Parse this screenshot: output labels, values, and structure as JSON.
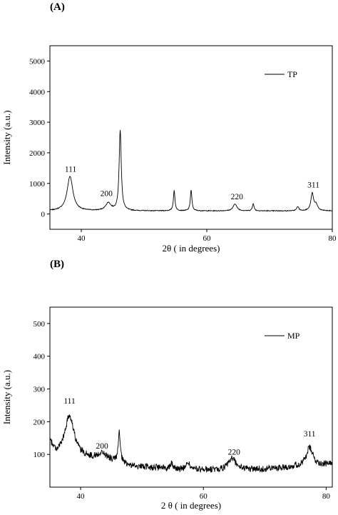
{
  "chart_data": [
    {
      "type": "line",
      "panel_label": "(A)",
      "xlabel": "2θ ( in degrees)",
      "ylabel": "Intensity (a.u.)",
      "xlim": [
        35,
        80
      ],
      "ylim": [
        -500,
        5500
      ],
      "xticks": [
        40,
        60,
        80
      ],
      "yticks": [
        0,
        1000,
        2000,
        3000,
        4000,
        5000
      ],
      "grid": false,
      "legend": {
        "position": "top-right",
        "entries": [
          "TP"
        ]
      },
      "series": [
        {
          "name": "TP",
          "baseline": 100,
          "peaks": [
            {
              "x": 38.2,
              "h": 1130,
              "w": 0.55
            },
            {
              "x": 44.3,
              "h": 250,
              "w": 0.5
            },
            {
              "x": 46.2,
              "h": 2630,
              "w": 0.2
            },
            {
              "x": 54.8,
              "h": 660,
              "w": 0.15
            },
            {
              "x": 57.5,
              "h": 680,
              "w": 0.15
            },
            {
              "x": 64.5,
              "h": 230,
              "w": 0.35
            },
            {
              "x": 67.4,
              "h": 240,
              "w": 0.15
            },
            {
              "x": 74.5,
              "h": 140,
              "w": 0.2
            },
            {
              "x": 76.8,
              "h": 560,
              "w": 0.25
            },
            {
              "x": 77.4,
              "h": 200,
              "w": 0.3
            }
          ],
          "noise": 12
        }
      ],
      "annotations": [
        {
          "text": "111",
          "x": 38.3,
          "y": 1380
        },
        {
          "text": "200",
          "x": 44.0,
          "y": 580
        },
        {
          "text": "220",
          "x": 64.8,
          "y": 480
        },
        {
          "text": "311",
          "x": 77.0,
          "y": 860
        }
      ]
    },
    {
      "type": "line",
      "panel_label": "(B)",
      "xlabel": "2 θ ( in degrees)",
      "ylabel": "Intensity (a.u.)",
      "xlim": [
        35,
        81
      ],
      "ylim": [
        0,
        550
      ],
      "xticks": [
        40,
        60,
        80
      ],
      "yticks": [
        100,
        200,
        300,
        400,
        500
      ],
      "grid": false,
      "legend": {
        "position": "top-right",
        "entries": [
          "MP"
        ]
      },
      "series": [
        {
          "name": "MP",
          "baseline_points": [
            [
              35,
              135
            ],
            [
              36,
              100
            ],
            [
              40,
              90
            ],
            [
              45,
              80
            ],
            [
              48,
              65
            ],
            [
              55,
              55
            ],
            [
              62,
              52
            ],
            [
              70,
              55
            ],
            [
              76,
              65
            ],
            [
              81,
              70
            ]
          ],
          "peaks": [
            {
              "x": 38.2,
              "h": 125,
              "w": 0.9
            },
            {
              "x": 43.5,
              "h": 20,
              "w": 0.8
            },
            {
              "x": 46.3,
              "h": 90,
              "w": 0.2
            },
            {
              "x": 54.8,
              "h": 18,
              "w": 0.3
            },
            {
              "x": 57.5,
              "h": 22,
              "w": 0.3
            },
            {
              "x": 64.7,
              "h": 35,
              "w": 0.7
            },
            {
              "x": 77.3,
              "h": 55,
              "w": 0.6
            }
          ],
          "noise": 10
        }
      ],
      "annotations": [
        {
          "text": "111",
          "x": 38.2,
          "y": 255
        },
        {
          "text": "200",
          "x": 43.5,
          "y": 118
        },
        {
          "text": "220",
          "x": 65.0,
          "y": 99
        },
        {
          "text": "311",
          "x": 77.3,
          "y": 155
        }
      ]
    }
  ]
}
